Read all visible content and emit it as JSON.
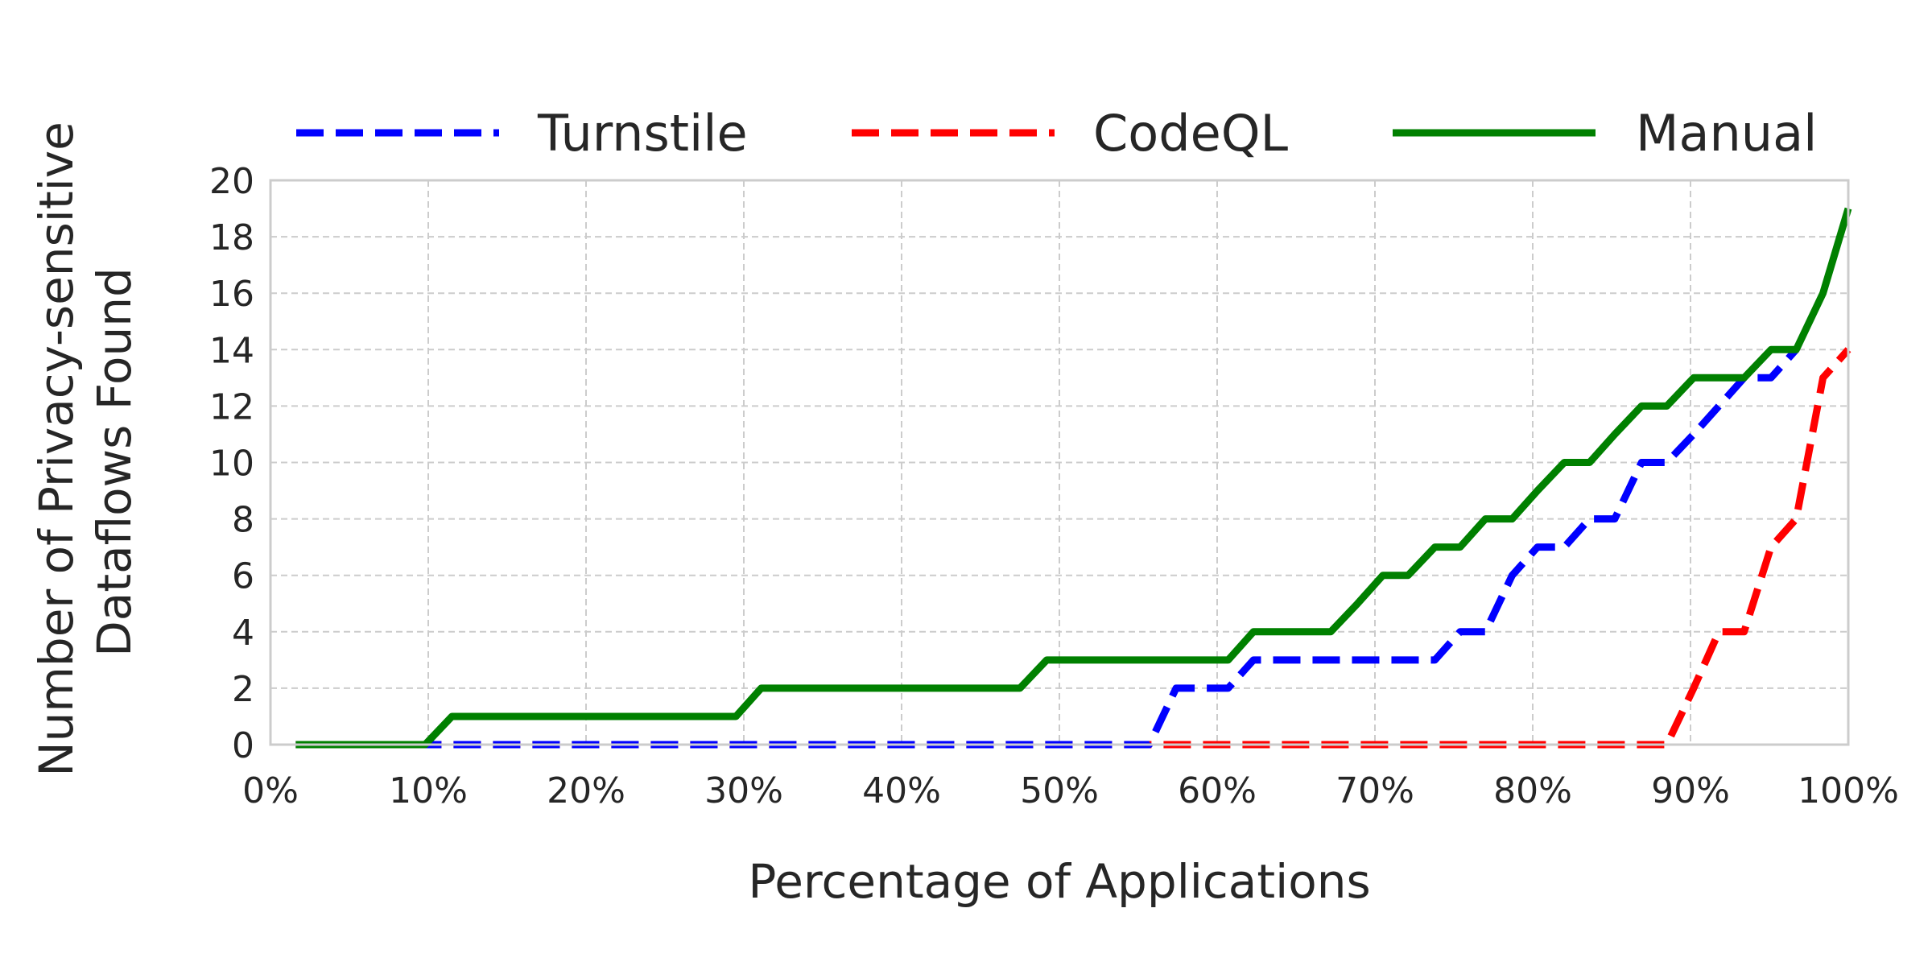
{
  "chart_data": {
    "type": "line",
    "xlabel": "Percentage of Applications",
    "ylabel_lines": [
      "Number of Privacy-sensitive",
      "Dataflows Found"
    ],
    "xlim": [
      0,
      100
    ],
    "ylim": [
      0,
      20
    ],
    "xticks": [
      0,
      10,
      20,
      30,
      40,
      50,
      60,
      70,
      80,
      90,
      100
    ],
    "xtick_labels": [
      "0%",
      "10%",
      "20%",
      "30%",
      "40%",
      "50%",
      "60%",
      "70%",
      "80%",
      "90%",
      "100%"
    ],
    "yticks": [
      0,
      2,
      4,
      6,
      8,
      10,
      12,
      14,
      16,
      18,
      20
    ],
    "ytick_labels": [
      "0",
      "2",
      "4",
      "6",
      "8",
      "10",
      "12",
      "14",
      "16",
      "18",
      "20"
    ],
    "grid": true,
    "legend_position": "top",
    "series": [
      {
        "name": "Turnstile",
        "color": "#0000ff",
        "style": "dashed",
        "points": [
          [
            1.6,
            0
          ],
          [
            55.7,
            0
          ],
          [
            57.4,
            2
          ],
          [
            60.7,
            2
          ],
          [
            62.3,
            3
          ],
          [
            73.8,
            3
          ],
          [
            75.4,
            4
          ],
          [
            77.0,
            4
          ],
          [
            78.7,
            6
          ],
          [
            80.3,
            7
          ],
          [
            82.0,
            7
          ],
          [
            83.6,
            8
          ],
          [
            85.2,
            8
          ],
          [
            86.9,
            10
          ],
          [
            88.5,
            10
          ],
          [
            90.2,
            11
          ],
          [
            91.8,
            12
          ],
          [
            93.4,
            13
          ],
          [
            95.1,
            13
          ],
          [
            96.7,
            14
          ]
        ]
      },
      {
        "name": "CodeQL",
        "color": "#ff0000",
        "style": "dashed",
        "points": [
          [
            1.6,
            0
          ],
          [
            88.5,
            0
          ],
          [
            90.2,
            2
          ],
          [
            91.8,
            4
          ],
          [
            93.4,
            4
          ],
          [
            95.1,
            7
          ],
          [
            96.7,
            8
          ],
          [
            98.4,
            13
          ],
          [
            100,
            14
          ]
        ]
      },
      {
        "name": "Manual",
        "color": "#008000",
        "style": "solid",
        "points": [
          [
            1.6,
            0
          ],
          [
            9.8,
            0
          ],
          [
            11.5,
            1
          ],
          [
            29.5,
            1
          ],
          [
            31.1,
            2
          ],
          [
            47.5,
            2
          ],
          [
            49.2,
            3
          ],
          [
            60.7,
            3
          ],
          [
            62.3,
            4
          ],
          [
            67.2,
            4
          ],
          [
            68.9,
            5
          ],
          [
            70.5,
            6
          ],
          [
            72.1,
            6
          ],
          [
            73.8,
            7
          ],
          [
            75.4,
            7
          ],
          [
            77.0,
            8
          ],
          [
            78.7,
            8
          ],
          [
            80.3,
            9
          ],
          [
            82.0,
            10
          ],
          [
            83.6,
            10
          ],
          [
            85.2,
            11
          ],
          [
            86.9,
            12
          ],
          [
            88.5,
            12
          ],
          [
            90.2,
            13
          ],
          [
            93.4,
            13
          ],
          [
            95.1,
            14
          ],
          [
            96.7,
            14
          ],
          [
            98.4,
            16
          ],
          [
            100,
            19
          ]
        ]
      }
    ]
  }
}
